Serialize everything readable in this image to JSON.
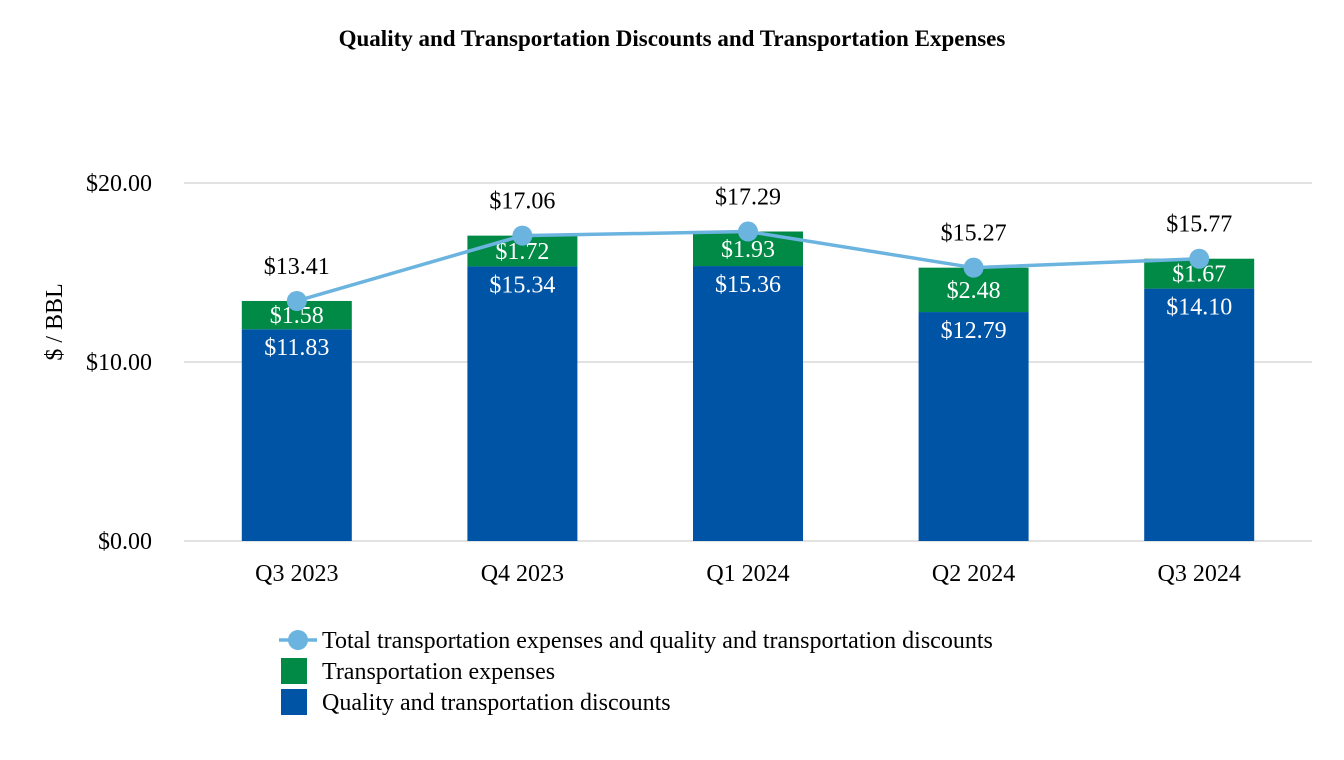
{
  "chart_data": {
    "type": "bar",
    "stacked": true,
    "title": "Quality and Transportation Discounts and Transportation Expenses",
    "xlabel": "",
    "ylabel": "$ / BBL",
    "ylim": [
      0,
      20
    ],
    "yticks": [
      {
        "value": 0,
        "label": "$0.00"
      },
      {
        "value": 10,
        "label": "$10.00"
      },
      {
        "value": 20,
        "label": "$20.00"
      }
    ],
    "grid": true,
    "legend_position": "bottom",
    "categories": [
      "Q3 2023",
      "Q4 2023",
      "Q1 2024",
      "Q2 2024",
      "Q3 2024"
    ],
    "series": [
      {
        "name": "Quality and transportation discounts",
        "kind": "bar",
        "color": "#0054a6",
        "label_color": "#ffffff",
        "values": [
          11.83,
          15.34,
          15.36,
          12.79,
          14.1
        ],
        "labels": [
          "$11.83",
          "$15.34",
          "$15.36",
          "$12.79",
          "$14.10"
        ]
      },
      {
        "name": "Transportation expenses",
        "kind": "bar",
        "color": "#008a45",
        "label_color": "#ffffff",
        "values": [
          1.58,
          1.72,
          1.93,
          2.48,
          1.67
        ],
        "labels": [
          "$1.58",
          "$1.72",
          "$1.93",
          "$2.48",
          "$1.67"
        ]
      },
      {
        "name": "Total transportation expenses and quality and transportation discounts",
        "kind": "line",
        "color": "#6cb4e0",
        "label_color": "#000000",
        "values": [
          13.41,
          17.06,
          17.29,
          15.27,
          15.77
        ],
        "labels": [
          "$13.41",
          "$17.06",
          "$17.29",
          "$15.27",
          "$15.77"
        ]
      }
    ],
    "legend_order": [
      2,
      1,
      0
    ]
  }
}
